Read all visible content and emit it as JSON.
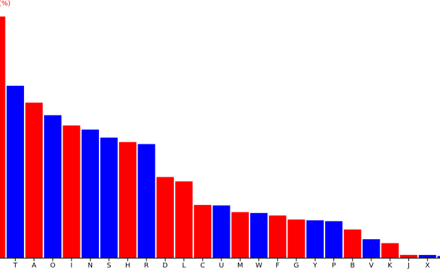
{
  "chart_data": {
    "type": "bar",
    "title": "(%)",
    "categories": [
      null,
      "T",
      "A",
      "O",
      "I",
      "N",
      "S",
      "H",
      "R",
      "D",
      "L",
      "C",
      "U",
      "M",
      "W",
      "F",
      "G",
      "Y",
      "P",
      "B",
      "V",
      "K",
      "J",
      "X",
      null
    ],
    "values": [
      12.702,
      9.056,
      8.167,
      7.507,
      6.966,
      6.749,
      6.327,
      6.094,
      5.987,
      4.253,
      4.025,
      2.782,
      2.758,
      2.406,
      2.36,
      2.228,
      2.015,
      1.974,
      1.929,
      1.492,
      0.978,
      0.772,
      0.153,
      0.15,
      0.095
    ],
    "colors": [
      "#ff0000",
      "#0000ff",
      "#ff0000",
      "#0000ff",
      "#ff0000",
      "#0000ff",
      "#0000ff",
      "#ff0000",
      "#0000ff",
      "#ff0000",
      "#ff0000",
      "#ff0000",
      "#0000ff",
      "#ff0000",
      "#0000ff",
      "#ff0000",
      "#ff0000",
      "#0000ff",
      "#0000ff",
      "#ff0000",
      "#0000ff",
      "#ff0000",
      "#ff0000",
      "#0000ff",
      "#0000ff"
    ],
    "ylim": [
      0,
      13.57
    ]
  }
}
